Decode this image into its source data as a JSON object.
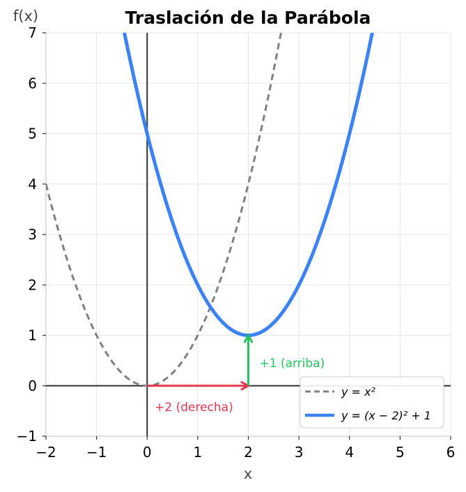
{
  "chart_data": {
    "type": "line",
    "title": "Traslación de la Parábola",
    "xlabel": "x",
    "ylabel": "f(x)",
    "xlim": [
      -2,
      6
    ],
    "ylim": [
      -1,
      7
    ],
    "xticks": [
      -2,
      -1,
      0,
      1,
      2,
      3,
      4,
      5,
      6
    ],
    "yticks": [
      -1,
      0,
      1,
      2,
      3,
      4,
      5,
      6,
      7
    ],
    "xtick_labels": [
      "−2",
      "−1",
      "0",
      "1",
      "2",
      "3",
      "4",
      "5",
      "6"
    ],
    "ytick_labels": [
      "−1",
      "0",
      "1",
      "2",
      "3",
      "4",
      "5",
      "6",
      "7"
    ],
    "grid": true,
    "legend_position": "bottom-right",
    "series": [
      {
        "name": "y = x²",
        "formula": "x^2",
        "h": 0,
        "k": 0,
        "color": "#808080",
        "style": "dashed"
      },
      {
        "name": "y = (x − 2)² + 1",
        "formula": "(x-2)^2+1",
        "h": 2,
        "k": 1,
        "color": "#3b82f6",
        "style": "solid"
      }
    ],
    "annotations": [
      {
        "text": "+2 (derecha)",
        "from": [
          0,
          0
        ],
        "to": [
          2,
          0
        ],
        "color": "#e5384f"
      },
      {
        "text": "+1 (arriba)",
        "from": [
          2,
          0
        ],
        "to": [
          2,
          1
        ],
        "color": "#22c55e"
      }
    ]
  }
}
